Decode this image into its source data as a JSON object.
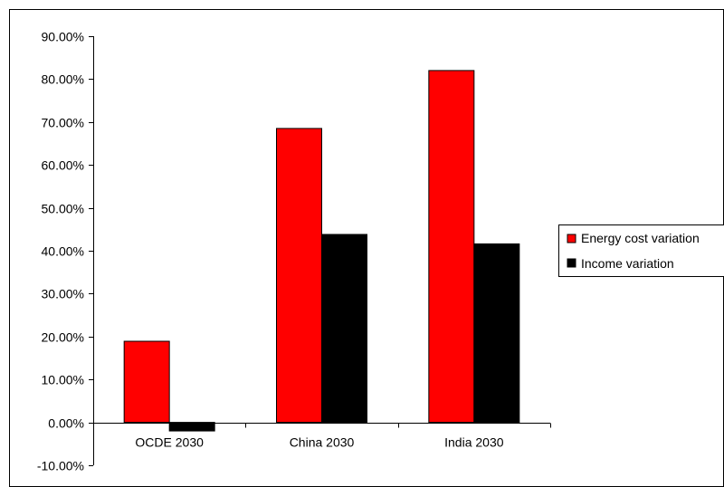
{
  "chart_data": {
    "type": "bar",
    "categories": [
      "OCDE 2030",
      "China 2030",
      "India 2030"
    ],
    "series": [
      {
        "name": "Energy cost variation",
        "color": "#ff0000",
        "values": [
          18.9,
          68.5,
          82.0
        ]
      },
      {
        "name": "Income variation",
        "color": "#000000",
        "values": [
          -2.0,
          43.8,
          41.6
        ]
      }
    ],
    "y_ticks": [
      "90.00%",
      "80.00%",
      "70.00%",
      "60.00%",
      "50.00%",
      "40.00%",
      "30.00%",
      "20.00%",
      "10.00%",
      "0.00%",
      "-10.00%"
    ],
    "ylim": [
      -10,
      90
    ],
    "grid": false,
    "legend_position": "right",
    "title": "",
    "xlabel": "",
    "ylabel": ""
  }
}
